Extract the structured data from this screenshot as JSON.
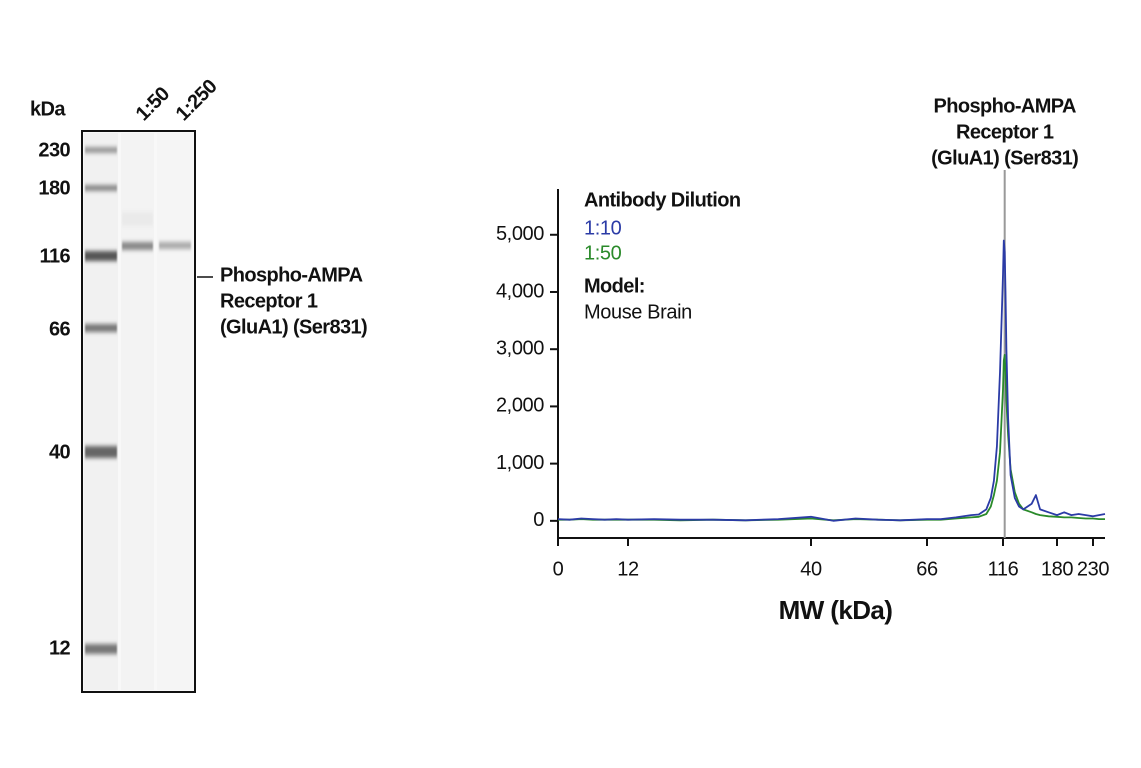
{
  "gel": {
    "unit_label": "kDa",
    "lanes": [
      "1:50",
      "1:250"
    ],
    "ladder": [
      "230",
      "180",
      "116",
      "66",
      "40",
      "12"
    ],
    "band_label": [
      "Phospho-AMPA",
      "Receptor 1",
      "(GluA1) (Ser831)"
    ]
  },
  "chart_data": {
    "type": "line",
    "x_label": "MW (kDa)",
    "x_scale": "interpolated",
    "legend_title": "Antibody Dilution",
    "model_title": "Model:",
    "model": "Mouse Brain",
    "annotation": {
      "lines": [
        "Phospho-AMPA",
        "Receptor 1",
        "(GluA1) (Ser831)"
      ],
      "x": 118
    },
    "x": [
      0,
      2,
      4,
      6,
      8,
      10,
      12,
      16,
      20,
      25,
      30,
      35,
      40,
      45,
      50,
      55,
      60,
      66,
      75,
      85,
      95,
      100,
      105,
      108,
      110,
      112,
      114,
      116,
      117,
      118,
      119,
      120,
      122,
      125,
      130,
      135,
      140,
      150,
      155,
      160,
      170,
      180,
      190,
      200,
      210,
      220,
      230,
      240,
      250
    ],
    "series": [
      {
        "name": "1:10",
        "color": "#2b3ba6",
        "values": [
          30,
          20,
          40,
          30,
          20,
          30,
          20,
          30,
          20,
          20,
          10,
          30,
          70,
          0,
          40,
          20,
          10,
          30,
          30,
          60,
          100,
          110,
          200,
          400,
          700,
          1300,
          2600,
          4300,
          4900,
          4700,
          4000,
          3000,
          1800,
          800,
          400,
          250,
          200,
          300,
          450,
          200,
          150,
          100,
          150,
          100,
          120,
          100,
          80,
          100,
          120
        ]
      },
      {
        "name": "1:50",
        "color": "#2a8a2a",
        "values": [
          20,
          20,
          30,
          20,
          20,
          20,
          20,
          20,
          10,
          20,
          10,
          20,
          40,
          10,
          30,
          20,
          10,
          20,
          20,
          40,
          60,
          70,
          120,
          250,
          450,
          700,
          1200,
          2300,
          2800,
          2900,
          2600,
          2100,
          1500,
          900,
          500,
          300,
          200,
          150,
          120,
          100,
          80,
          70,
          60,
          60,
          50,
          40,
          40,
          30,
          30
        ]
      }
    ],
    "xlim": [
      0,
      250
    ],
    "xticks": [
      0,
      12,
      40,
      66,
      116,
      180,
      230
    ],
    "ylim": [
      -300,
      5800
    ],
    "yticks": [
      0,
      {
        "value": 1000,
        "label": "1,000"
      },
      {
        "value": 2000,
        "label": "2,000"
      },
      {
        "value": 3000,
        "label": "3,000"
      },
      {
        "value": 4000,
        "label": "4,000"
      },
      {
        "value": 5000,
        "label": "5,000"
      }
    ]
  }
}
